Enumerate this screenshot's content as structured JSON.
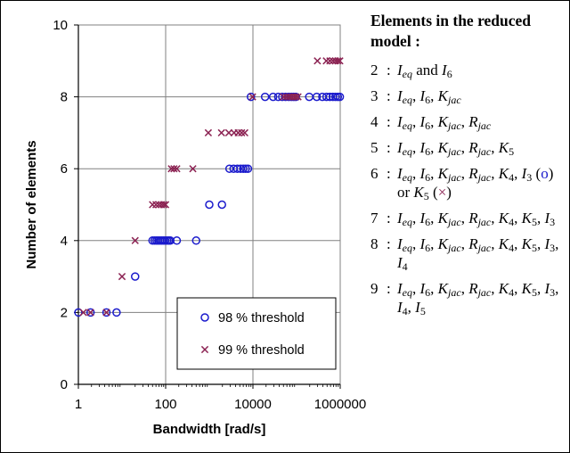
{
  "chart_data": {
    "type": "scatter",
    "xlabel": "Bandwidth [rad/s]",
    "ylabel": "Number of elements",
    "x_scale": "log",
    "xlim": [
      1,
      1000000
    ],
    "ylim": [
      0,
      10
    ],
    "x_ticks": [
      "1",
      "100",
      "10000",
      "1000000"
    ],
    "y_ticks": [
      "0",
      "2",
      "4",
      "6",
      "8",
      "10"
    ],
    "grid": "vertical and horizontal major gridlines",
    "legend_position": "bottom-center",
    "series": [
      {
        "name": "98 % threshold",
        "marker": "circle",
        "color": "#1a1acc",
        "points": [
          [
            1,
            2
          ],
          [
            1.9,
            2
          ],
          [
            4.4,
            2
          ],
          [
            7.5,
            2
          ],
          [
            20,
            3
          ],
          [
            50,
            4
          ],
          [
            56,
            4
          ],
          [
            62,
            4
          ],
          [
            68,
            4
          ],
          [
            75,
            4
          ],
          [
            82,
            4
          ],
          [
            90,
            4
          ],
          [
            98,
            4
          ],
          [
            108,
            4
          ],
          [
            118,
            4
          ],
          [
            128,
            4
          ],
          [
            180,
            4
          ],
          [
            500,
            4
          ],
          [
            1000,
            5
          ],
          [
            1950,
            5
          ],
          [
            2900,
            6
          ],
          [
            3600,
            6
          ],
          [
            4400,
            6
          ],
          [
            5200,
            6
          ],
          [
            6000,
            6
          ],
          [
            6800,
            6
          ],
          [
            7700,
            6
          ],
          [
            9000,
            8
          ],
          [
            19000,
            8
          ],
          [
            29000,
            8
          ],
          [
            38000,
            8
          ],
          [
            47000,
            8
          ],
          [
            56000,
            8
          ],
          [
            66000,
            8
          ],
          [
            76000,
            8
          ],
          [
            86000,
            8
          ],
          [
            96000,
            8
          ],
          [
            195000,
            8
          ],
          [
            290000,
            8
          ],
          [
            390000,
            8
          ],
          [
            485000,
            8
          ],
          [
            580000,
            8
          ],
          [
            680000,
            8
          ],
          [
            780000,
            8
          ],
          [
            880000,
            8
          ],
          [
            980000,
            8
          ]
        ]
      },
      {
        "name": "99 % threshold",
        "marker": "x",
        "color": "#8b2252",
        "points": [
          [
            1.3,
            2
          ],
          [
            1.9,
            2
          ],
          [
            4.4,
            2
          ],
          [
            10,
            3
          ],
          [
            20,
            4
          ],
          [
            50,
            5
          ],
          [
            60,
            5
          ],
          [
            70,
            5
          ],
          [
            80,
            5
          ],
          [
            90,
            5
          ],
          [
            100,
            5
          ],
          [
            135,
            6
          ],
          [
            155,
            6
          ],
          [
            180,
            6
          ],
          [
            420,
            6
          ],
          [
            950,
            7
          ],
          [
            1900,
            7
          ],
          [
            2800,
            7
          ],
          [
            3700,
            7
          ],
          [
            4600,
            7
          ],
          [
            5500,
            7
          ],
          [
            6500,
            7
          ],
          [
            9800,
            8
          ],
          [
            50000,
            8
          ],
          [
            58000,
            8
          ],
          [
            67000,
            8
          ],
          [
            76000,
            8
          ],
          [
            86000,
            8
          ],
          [
            96000,
            8
          ],
          [
            108000,
            8
          ],
          [
            300000,
            9
          ],
          [
            480000,
            9
          ],
          [
            580000,
            9
          ],
          [
            680000,
            9
          ],
          [
            780000,
            9
          ],
          [
            880000,
            9
          ],
          [
            980000,
            9
          ]
        ]
      }
    ]
  },
  "panel": {
    "title": "Elements in the reduced model :",
    "items": [
      {
        "count": "2",
        "html": "<i>I</i><sub><i>eq</i></sub> and <i>I</i><sub>6</sub>"
      },
      {
        "count": "3",
        "html": "<i>I</i><sub><i>eq</i></sub>, <i>I</i><sub>6</sub>, <i>K</i><sub><i>jac</i></sub>"
      },
      {
        "count": "4",
        "html": "<i>I</i><sub><i>eq</i></sub>, <i>I</i><sub>6</sub>, <i>K</i><sub><i>jac</i></sub>, <i>R</i><sub><i>jac</i></sub>"
      },
      {
        "count": "5",
        "html": "<i>I</i><sub><i>eq</i></sub>, <i>I</i><sub>6</sub>, <i>K</i><sub><i>jac</i></sub>, <i>R</i><sub><i>jac</i></sub>, <i>K</i><sub>5</sub>"
      },
      {
        "count": "6",
        "html": "<i>I</i><sub><i>eq</i></sub>, <i>I</i><sub>6</sub>, <i>K</i><sub><i>jac</i></sub>, <i>R</i><sub><i>jac</i></sub>, <i>K</i><sub>4</sub>, <i>I</i><sub>3</sub> (<span class=\"circ\">o</span>) or <i>K</i><sub>5</sub> (<span class=\"cross\">×</span>)"
      },
      {
        "count": "7",
        "html": "<i>I</i><sub><i>eq</i></sub>, <i>I</i><sub>6</sub>, <i>K</i><sub><i>jac</i></sub>, <i>R</i><sub><i>jac</i></sub>, <i>K</i><sub>4</sub>, <i>K</i><sub>5</sub>, <i>I</i><sub>3</sub>"
      },
      {
        "count": "8",
        "html": "<i>I</i><sub><i>eq</i></sub>, <i>I</i><sub>6</sub>, <i>K</i><sub><i>jac</i></sub>, <i>R</i><sub><i>jac</i></sub>, <i>K</i><sub>4</sub>, <i>K</i><sub>5</sub>, <i>I</i><sub>3</sub>, <i>I</i><sub>4</sub>"
      },
      {
        "count": "9",
        "html": "<i>I</i><sub><i>eq</i></sub>, <i>I</i><sub>6</sub>, <i>K</i><sub><i>jac</i></sub>, <i>R</i><sub><i>jac</i></sub>, <i>K</i><sub>4</sub>, <i>K</i><sub>5</sub>, <i>I</i><sub>3</sub>, <i>I</i><sub>4</sub>, <i>I</i><sub>5</sub>"
      }
    ]
  }
}
